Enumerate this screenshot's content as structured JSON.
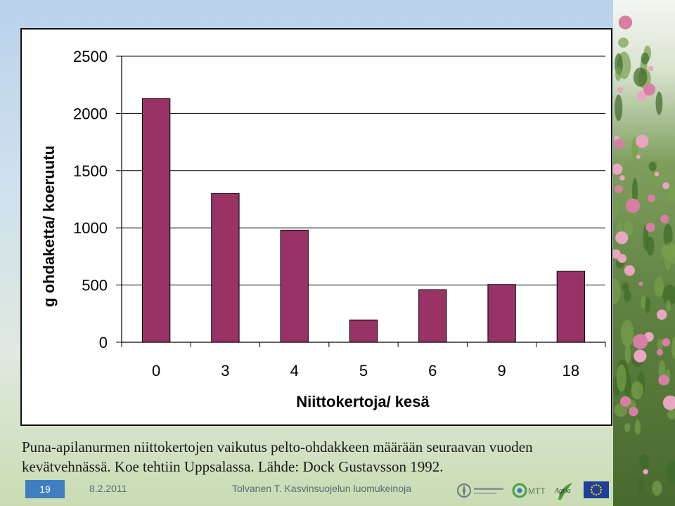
{
  "chart_data": {
    "type": "bar",
    "categories": [
      "0",
      "3",
      "4",
      "5",
      "6",
      "9",
      "18"
    ],
    "values": [
      2130,
      1300,
      980,
      195,
      460,
      505,
      620
    ],
    "xlabel": "Niittokertoja/ kesä",
    "ylabel": "g ohdaketta/ koeruutu",
    "ylim": [
      0,
      2500
    ],
    "yticks": [
      0,
      500,
      1000,
      1500,
      2000,
      2500
    ],
    "grid": true,
    "legend": "none",
    "bar_color": "#993366"
  },
  "caption": {
    "line1": "Puna-apilanurmen niittokertojen vaikutus pelto-ohdakkeen määrään seuraavan vuoden",
    "line2": "kevätvehnässä. Koe tehtiin Uppsalassa. Lähde: Dock Gustavsson 1992."
  },
  "footer": {
    "slide_number": "19",
    "date": "8.2.2011",
    "author": "Tolvanen T. Kasvinsuojelun luomukeinoja"
  },
  "logos": {
    "mtt": "MTT",
    "agria": "Agria"
  },
  "colors": {
    "accent": "#3f7fc0",
    "bar": "#993366"
  }
}
